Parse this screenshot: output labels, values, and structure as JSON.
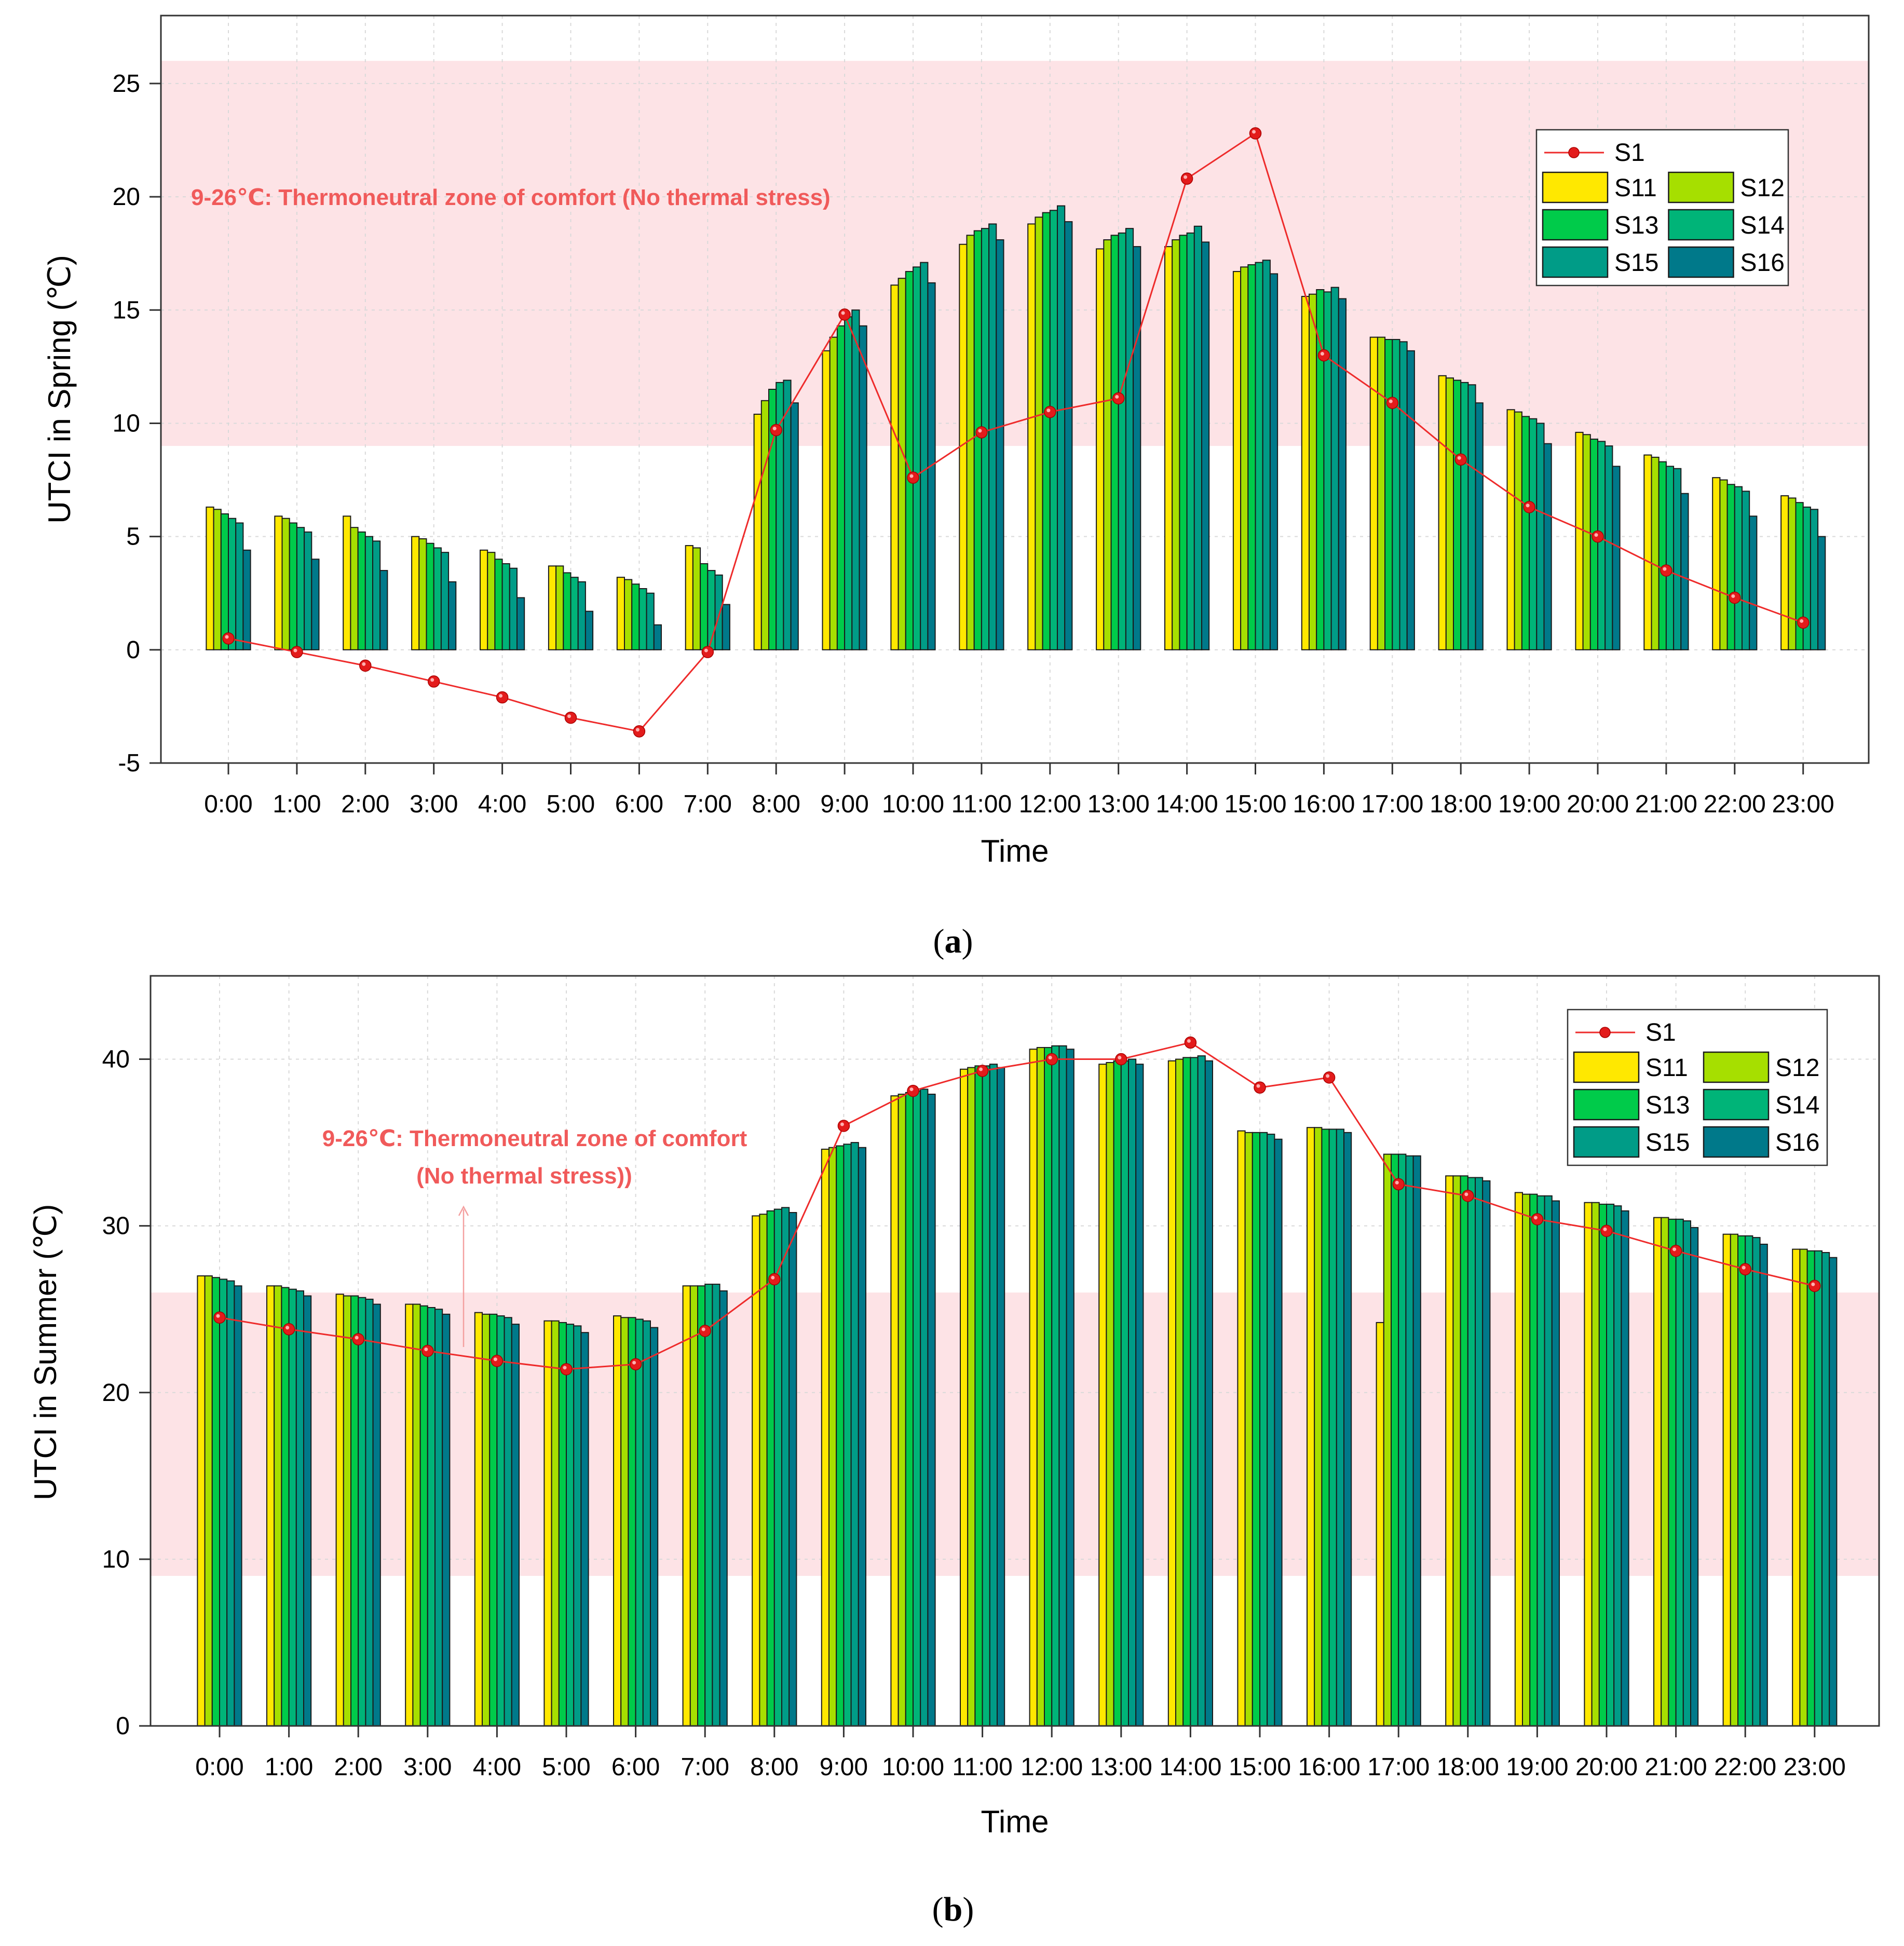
{
  "colors": {
    "S1": "#ee2b2b",
    "S11": "#ffe800",
    "S12": "#a6df00",
    "S13": "#00cb4a",
    "S14": "#00b478",
    "S15": "#009c87",
    "S16": "#00798a",
    "comfort_zone": "#fde3e6",
    "annotation": "#f05a5a",
    "grid": "#d9d9d9"
  },
  "chart_data": [
    {
      "panel": "a",
      "caption": "(a)",
      "caption_letter": "a",
      "type": "bar",
      "xlabel": "Time",
      "ylabel": "UTCI in Spring  (℃)",
      "ylim": [
        -5,
        28
      ],
      "yticks": [
        "-5",
        "0",
        "5",
        "10",
        "15",
        "20",
        "25"
      ],
      "grid": true,
      "legend_position": "top-right",
      "comfort_zone": {
        "from": 9,
        "to": 26
      },
      "annotation": "9-26℃: Thermoneutral zone of comfort (No thermal stress)",
      "categories": [
        "0:00",
        "1:00",
        "2:00",
        "3:00",
        "4:00",
        "5:00",
        "6:00",
        "7:00",
        "8:00",
        "9:00",
        "10:00",
        "11:00",
        "12:00",
        "13:00",
        "14:00",
        "15:00",
        "16:00",
        "17:00",
        "18:00",
        "19:00",
        "20:00",
        "21:00",
        "22:00",
        "23:00"
      ],
      "line_series": {
        "name": "S1",
        "values": [
          0.5,
          -0.1,
          -0.7,
          -1.4,
          -2.1,
          -3.0,
          -3.6,
          -0.1,
          9.7,
          14.8,
          7.6,
          9.6,
          10.5,
          11.1,
          20.8,
          22.8,
          13.0,
          10.9,
          8.4,
          6.3,
          5.0,
          3.5,
          2.3,
          1.2
        ]
      },
      "series": [
        {
          "name": "S11",
          "values": [
            6.3,
            5.9,
            5.9,
            5.0,
            4.4,
            3.7,
            3.2,
            4.6,
            10.4,
            13.2,
            16.1,
            17.9,
            18.8,
            17.7,
            17.8,
            16.7,
            15.6,
            13.8,
            12.1,
            10.6,
            9.6,
            8.6,
            7.6,
            6.8
          ]
        },
        {
          "name": "S12",
          "values": [
            6.2,
            5.8,
            5.4,
            4.9,
            4.3,
            3.7,
            3.1,
            4.5,
            11.0,
            13.8,
            16.4,
            18.3,
            19.1,
            18.1,
            18.1,
            16.9,
            15.7,
            13.8,
            12.0,
            10.5,
            9.5,
            8.5,
            7.5,
            6.7
          ]
        },
        {
          "name": "S13",
          "values": [
            6.0,
            5.6,
            5.2,
            4.7,
            4.0,
            3.4,
            2.9,
            3.8,
            11.5,
            14.3,
            16.7,
            18.5,
            19.3,
            18.3,
            18.3,
            17.0,
            15.9,
            13.7,
            11.9,
            10.3,
            9.3,
            8.3,
            7.3,
            6.5
          ]
        },
        {
          "name": "S14",
          "values": [
            5.8,
            5.4,
            5.0,
            4.5,
            3.8,
            3.2,
            2.7,
            3.5,
            11.8,
            14.7,
            16.9,
            18.6,
            19.4,
            18.4,
            18.4,
            17.1,
            15.8,
            13.7,
            11.8,
            10.2,
            9.2,
            8.1,
            7.2,
            6.3
          ]
        },
        {
          "name": "S15",
          "values": [
            5.6,
            5.2,
            4.8,
            4.3,
            3.6,
            3.0,
            2.5,
            3.3,
            11.9,
            15.0,
            17.1,
            18.8,
            19.6,
            18.6,
            18.7,
            17.2,
            16.0,
            13.6,
            11.7,
            10.0,
            9.0,
            8.0,
            7.0,
            6.2
          ]
        },
        {
          "name": "S16",
          "values": [
            4.4,
            4.0,
            3.5,
            3.0,
            2.3,
            1.7,
            1.1,
            2.0,
            10.9,
            14.3,
            16.2,
            18.1,
            18.9,
            17.8,
            18.0,
            16.6,
            15.5,
            13.2,
            10.9,
            9.1,
            8.1,
            6.9,
            5.9,
            5.0
          ]
        }
      ]
    },
    {
      "panel": "b",
      "caption": "(b)",
      "caption_letter": "b",
      "type": "bar",
      "xlabel": "Time",
      "ylabel": "UTCI in Summer  (℃)",
      "ylim": [
        0,
        45
      ],
      "yticks": [
        "0",
        "10",
        "20",
        "30",
        "40"
      ],
      "grid": true,
      "legend_position": "top-right",
      "comfort_zone": {
        "from": 9,
        "to": 26
      },
      "annotation_line1": "9-26℃: Thermoneutral zone of comfort",
      "annotation_line2": "(No thermal stress))",
      "categories": [
        "0:00",
        "1:00",
        "2:00",
        "3:00",
        "4:00",
        "5:00",
        "6:00",
        "7:00",
        "8:00",
        "9:00",
        "10:00",
        "11:00",
        "12:00",
        "13:00",
        "14:00",
        "15:00",
        "16:00",
        "17:00",
        "18:00",
        "19:00",
        "20:00",
        "21:00",
        "22:00",
        "23:00"
      ],
      "line_series": {
        "name": "S1",
        "values": [
          24.5,
          23.8,
          23.2,
          22.5,
          21.9,
          21.4,
          21.7,
          23.7,
          26.8,
          36.0,
          38.1,
          39.3,
          40.0,
          40.0,
          41.0,
          38.3,
          38.9,
          32.5,
          31.8,
          30.4,
          29.7,
          28.5,
          27.4,
          26.4
        ]
      },
      "series": [
        {
          "name": "S11",
          "values": [
            27.0,
            26.4,
            25.9,
            25.3,
            24.8,
            24.3,
            24.6,
            26.4,
            30.6,
            34.6,
            37.8,
            39.4,
            40.6,
            39.7,
            39.9,
            35.7,
            35.9,
            24.2,
            33.0,
            32.0,
            31.4,
            30.5,
            29.5,
            28.6
          ]
        },
        {
          "name": "S12",
          "values": [
            27.0,
            26.4,
            25.8,
            25.3,
            24.7,
            24.3,
            24.5,
            26.4,
            30.7,
            34.7,
            37.9,
            39.5,
            40.7,
            39.8,
            40.0,
            35.6,
            35.9,
            34.3,
            33.0,
            31.9,
            31.4,
            30.5,
            29.5,
            28.6
          ]
        },
        {
          "name": "S13",
          "values": [
            26.9,
            26.3,
            25.8,
            25.2,
            24.7,
            24.2,
            24.5,
            26.4,
            30.9,
            34.8,
            38.0,
            39.6,
            40.7,
            39.9,
            40.1,
            35.6,
            35.8,
            34.3,
            33.0,
            31.9,
            31.3,
            30.4,
            29.4,
            28.5
          ]
        },
        {
          "name": "S14",
          "values": [
            26.8,
            26.2,
            25.7,
            25.1,
            24.6,
            24.1,
            24.4,
            26.5,
            31.0,
            34.9,
            38.1,
            39.6,
            40.8,
            39.9,
            40.1,
            35.6,
            35.8,
            34.3,
            32.9,
            31.8,
            31.3,
            30.4,
            29.4,
            28.5
          ]
        },
        {
          "name": "S15",
          "values": [
            26.7,
            26.1,
            25.6,
            25.0,
            24.5,
            24.0,
            24.3,
            26.5,
            31.1,
            35.0,
            38.2,
            39.7,
            40.8,
            40.0,
            40.2,
            35.5,
            35.8,
            34.2,
            32.9,
            31.8,
            31.2,
            30.3,
            29.3,
            28.4
          ]
        },
        {
          "name": "S16",
          "values": [
            26.4,
            25.8,
            25.3,
            24.7,
            24.1,
            23.6,
            23.9,
            26.1,
            30.8,
            34.7,
            37.9,
            39.5,
            40.6,
            39.7,
            39.9,
            35.2,
            35.6,
            34.2,
            32.7,
            31.5,
            30.9,
            29.9,
            28.9,
            28.1
          ]
        }
      ]
    }
  ]
}
